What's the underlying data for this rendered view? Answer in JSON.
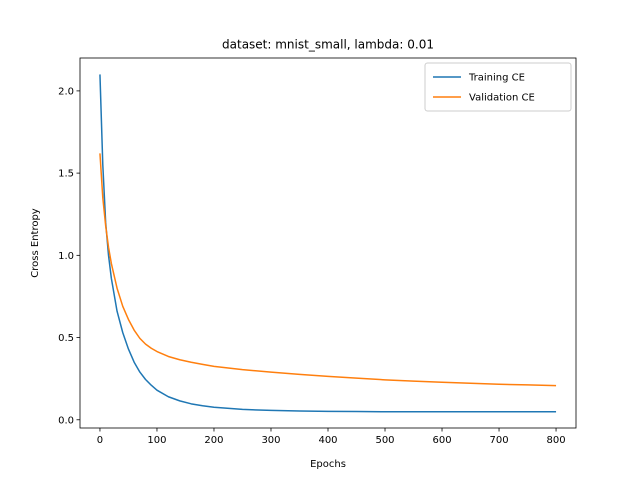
{
  "chart_data": {
    "type": "line",
    "title": "dataset: mnist_small, lambda: 0.01",
    "xlabel": "Epochs",
    "ylabel": "Cross Entropy",
    "xlim": [
      -35,
      835
    ],
    "ylim": [
      -0.05,
      2.2
    ],
    "xticks": [
      0,
      100,
      200,
      300,
      400,
      500,
      600,
      700,
      800
    ],
    "xtick_labels": [
      "0",
      "100",
      "200",
      "300",
      "400",
      "500",
      "600",
      "700",
      "800"
    ],
    "yticks": [
      0.0,
      0.5,
      1.0,
      1.5,
      2.0
    ],
    "ytick_labels": [
      "0.0",
      "0.5",
      "1.0",
      "1.5",
      "2.0"
    ],
    "grid": false,
    "legend_position": "top-right",
    "series": [
      {
        "name": "Training CE",
        "color": "#1f77b4",
        "x": [
          0,
          5,
          10,
          15,
          20,
          30,
          40,
          50,
          60,
          70,
          80,
          90,
          100,
          120,
          140,
          160,
          180,
          200,
          250,
          300,
          350,
          400,
          450,
          500,
          550,
          600,
          650,
          700,
          750,
          800
        ],
        "y": [
          2.1,
          1.55,
          1.2,
          1.0,
          0.86,
          0.66,
          0.53,
          0.43,
          0.35,
          0.29,
          0.245,
          0.21,
          0.18,
          0.14,
          0.115,
          0.097,
          0.085,
          0.076,
          0.063,
          0.057,
          0.053,
          0.051,
          0.05,
          0.049,
          0.049,
          0.049,
          0.049,
          0.049,
          0.049,
          0.049
        ]
      },
      {
        "name": "Validation CE",
        "color": "#ff7f0e",
        "x": [
          0,
          5,
          10,
          15,
          20,
          30,
          40,
          50,
          60,
          70,
          80,
          90,
          100,
          120,
          140,
          160,
          180,
          200,
          250,
          300,
          350,
          400,
          450,
          500,
          550,
          600,
          650,
          700,
          750,
          800
        ],
        "y": [
          1.62,
          1.35,
          1.18,
          1.05,
          0.95,
          0.8,
          0.69,
          0.61,
          0.545,
          0.495,
          0.46,
          0.435,
          0.415,
          0.385,
          0.365,
          0.35,
          0.337,
          0.325,
          0.305,
          0.29,
          0.276,
          0.264,
          0.253,
          0.243,
          0.235,
          0.228,
          0.222,
          0.216,
          0.212,
          0.208
        ]
      }
    ]
  }
}
